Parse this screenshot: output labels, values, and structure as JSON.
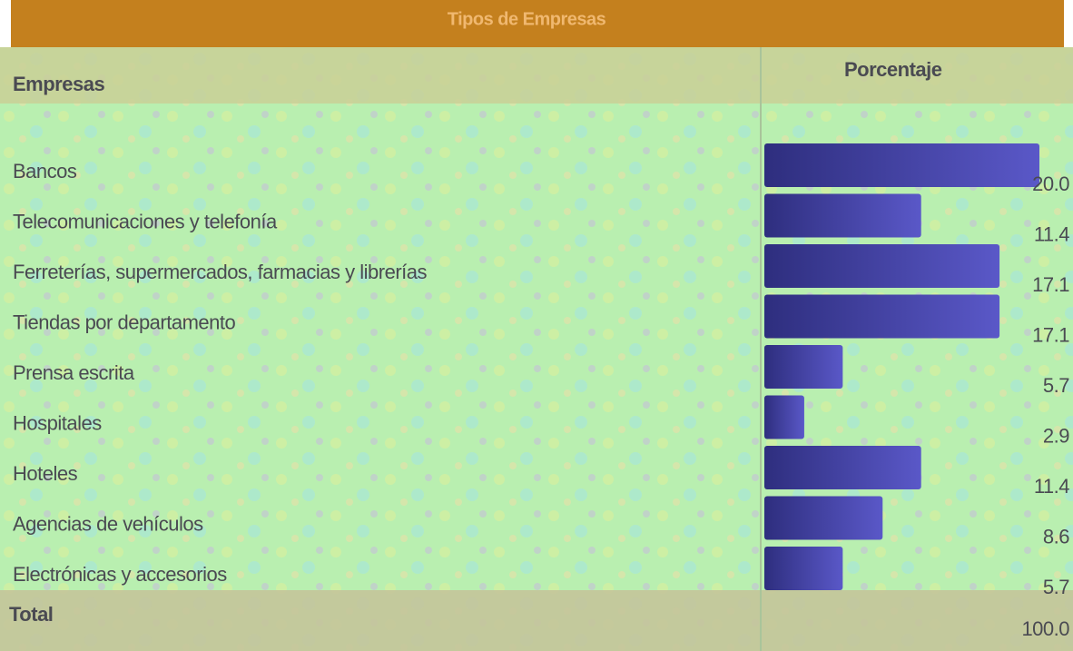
{
  "chart_data": {
    "type": "bar",
    "orientation": "horizontal",
    "title": "Tipos de Empresas",
    "category_header": "Empresas",
    "value_header": "Porcentaje",
    "categories": [
      "Bancos",
      "Telecomunicaciones y telefonía",
      "Ferreterías, supermercados, farmacias y librerías",
      "Tiendas por departamento",
      "Prensa escrita",
      "Hospitales",
      "Hoteles",
      "Agencias de vehículos",
      "Electrónicas y accesorios"
    ],
    "values": [
      20.0,
      11.4,
      17.1,
      17.1,
      5.7,
      2.9,
      11.4,
      8.6,
      5.7
    ],
    "value_labels": [
      "20.0",
      "11.4",
      "17.1",
      "17.1",
      "5.7",
      "2.9",
      "11.4",
      "8.6",
      "5.7"
    ],
    "color": "#3b3b96",
    "total_label": "Total",
    "total_value": 100.0,
    "total_value_label": "100.0"
  }
}
